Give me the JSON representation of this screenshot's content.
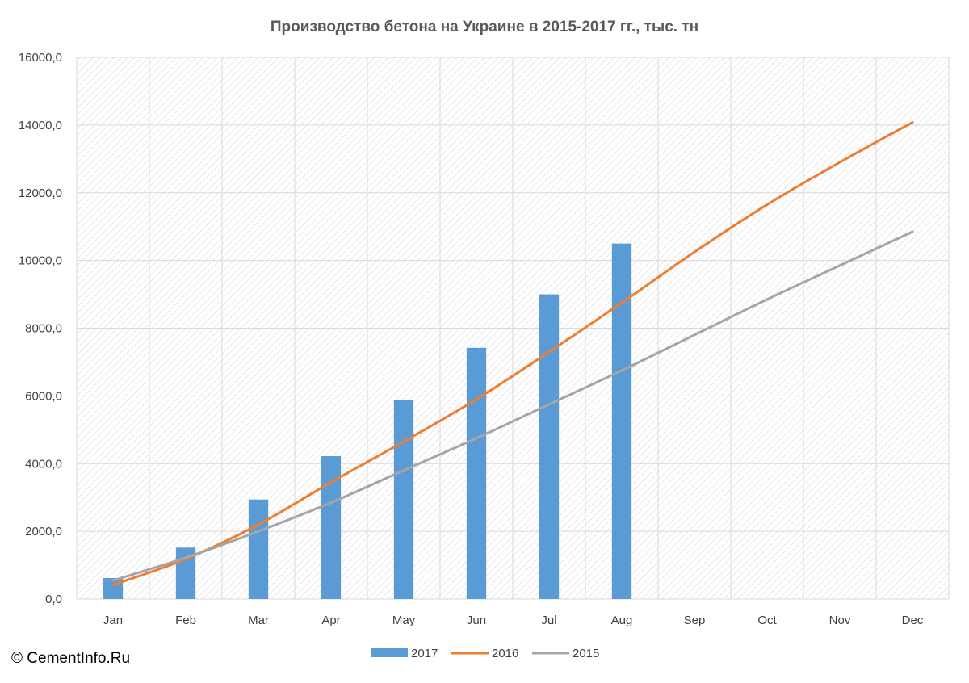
{
  "chart_data": {
    "type": "bar",
    "title": "Производство бетона на Украине в 2015-2017 гг., тыс. тн",
    "categories": [
      "Jan",
      "Feb",
      "Mar",
      "Apr",
      "May",
      "Jun",
      "Jul",
      "Aug",
      "Sep",
      "Oct",
      "Nov",
      "Dec"
    ],
    "ylim": [
      0,
      16000
    ],
    "yticks": [
      0,
      2000,
      4000,
      6000,
      8000,
      10000,
      12000,
      14000,
      16000
    ],
    "ytick_labels": [
      "0,0",
      "2000,0",
      "4000,0",
      "6000,0",
      "8000,0",
      "10000,0",
      "12000,0",
      "14000,0",
      "16000,0"
    ],
    "grid": true,
    "legend_position": "bottom",
    "series": [
      {
        "name": "2017",
        "kind": "bar",
        "color": "#5B9BD5",
        "values": [
          620,
          1520,
          2940,
          4220,
          5880,
          7420,
          9000,
          10500,
          null,
          null,
          null,
          null
        ]
      },
      {
        "name": "2016",
        "kind": "line",
        "color": "#ED7D31",
        "values": [
          420,
          1180,
          2200,
          3450,
          4650,
          5900,
          7300,
          8750,
          10250,
          11650,
          12900,
          14080
        ]
      },
      {
        "name": "2015",
        "kind": "line",
        "color": "#A5A5A5",
        "values": [
          550,
          1220,
          2000,
          2850,
          3800,
          4750,
          5750,
          6750,
          7800,
          8850,
          9850,
          10850
        ]
      }
    ]
  },
  "copyright": "© CementInfo.Ru"
}
